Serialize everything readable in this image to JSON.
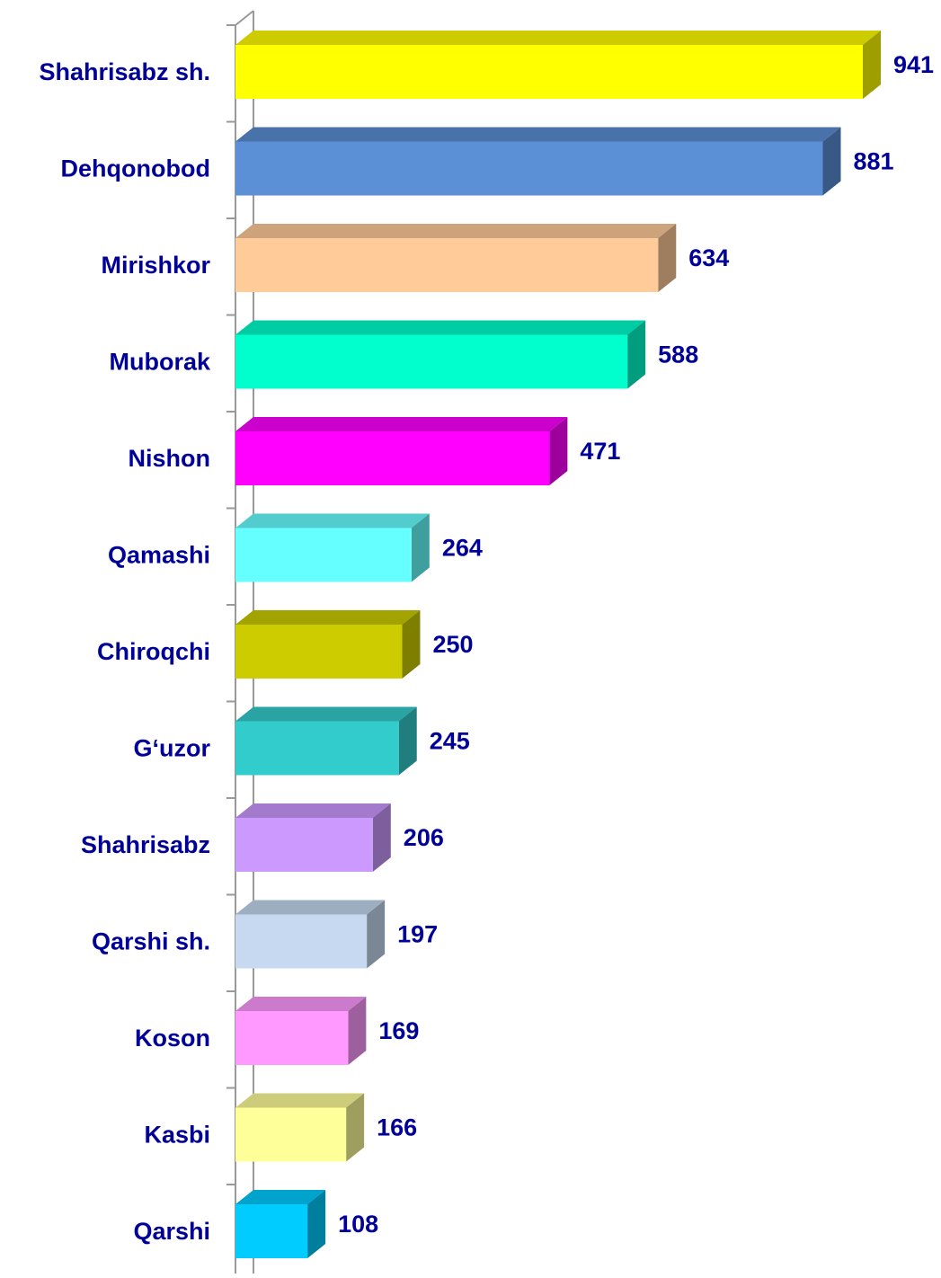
{
  "chart_data": {
    "type": "bar3d-horizontal",
    "categories": [
      "Shahrisabz sh.",
      "Dehqonobod",
      "Mirishkor",
      "Muborak",
      "Nishon",
      "Qamashi",
      "Chiroqchi",
      "G‘uzor",
      "Shahrisabz",
      "Qarshi sh.",
      "Koson",
      "Kasbi",
      "Qarshi"
    ],
    "values": [
      941,
      881,
      634,
      588,
      471,
      264,
      250,
      245,
      206,
      197,
      169,
      166,
      108
    ],
    "colors": [
      "#ffff00",
      "#5b8fd6",
      "#ffcc99",
      "#00ffcc",
      "#ff00ff",
      "#66ffff",
      "#cccc00",
      "#33cccc",
      "#cc99ff",
      "#c6d9f1",
      "#ff99ff",
      "#ffff99",
      "#00ccff"
    ]
  }
}
